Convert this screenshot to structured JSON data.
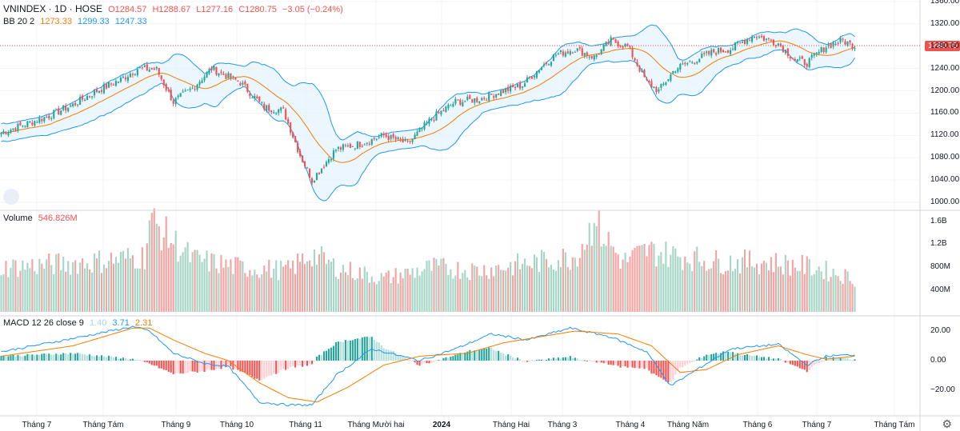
{
  "header": {
    "symbol": "VNINDEX · 1D · HOSE",
    "open": "O1284.57",
    "high": "H1288.67",
    "low": "L1277.16",
    "close": "C1280.75",
    "change": "−3.05 (−0.24%)"
  },
  "bb_legend": {
    "label": "BB 20 2",
    "basis": "1273.33",
    "upper": "1299.33",
    "lower": "1247.33"
  },
  "volume_legend": {
    "label": "Volume",
    "value": "546.826M"
  },
  "macd_legend": {
    "label": "MACD 12 26 close 9",
    "histogram": "1.40",
    "macd": "3.71",
    "signal": "2.31"
  },
  "last_price_tag": "1280.75",
  "colors": {
    "up": "#26a69a",
    "down": "#ef5350",
    "up_volume": "#a5d6c5",
    "down_volume": "#f4a3a3",
    "bb_band": "#2196f3",
    "bb_fill": "#e3f2fd",
    "basis": "#f57c00",
    "macd": "#2196f3",
    "signal": "#f57c00"
  },
  "chart_data": {
    "type": "line",
    "title": "VNINDEX 1D HOSE",
    "panes": [
      "price",
      "volume",
      "macd"
    ],
    "price_axis": {
      "ticks": [
        "1360.00",
        "1320.00",
        "1280.00",
        "1240.00",
        "1200.00",
        "1160.00",
        "1120.00",
        "1080.00",
        "1040.00",
        "1000.00"
      ],
      "range": [
        1000,
        1360
      ]
    },
    "volume_axis": {
      "ticks": [
        "1.6B",
        "1.2B",
        "800M",
        "400M"
      ],
      "range": [
        0,
        1700000000
      ]
    },
    "macd_axis": {
      "ticks": [
        "20.00",
        "0.00",
        "−20.00"
      ],
      "range": [
        -35,
        27
      ]
    },
    "x_labels": [
      "Tháng 7",
      "Tháng Tám",
      "Tháng 9",
      "Tháng 10",
      "Tháng 11",
      "Tháng Mười hai",
      "2024",
      "Tháng Hai",
      "Tháng 3",
      "Tháng 4",
      "Tháng Năm",
      "Tháng 6",
      "Tháng 7",
      "Tháng Tám"
    ],
    "close_anchors": [
      [
        0,
        1125
      ],
      [
        10,
        1140
      ],
      [
        20,
        1155
      ],
      [
        30,
        1175
      ],
      [
        40,
        1200
      ],
      [
        50,
        1220
      ],
      [
        57,
        1240
      ],
      [
        65,
        1238
      ],
      [
        72,
        1180
      ],
      [
        80,
        1205
      ],
      [
        88,
        1240
      ],
      [
        95,
        1225
      ],
      [
        100,
        1215
      ],
      [
        110,
        1170
      ],
      [
        118,
        1165
      ],
      [
        125,
        1085
      ],
      [
        130,
        1040
      ],
      [
        140,
        1095
      ],
      [
        150,
        1105
      ],
      [
        160,
        1120
      ],
      [
        170,
        1105
      ],
      [
        180,
        1150
      ],
      [
        190,
        1180
      ],
      [
        200,
        1185
      ],
      [
        210,
        1200
      ],
      [
        218,
        1210
      ],
      [
        225,
        1240
      ],
      [
        232,
        1265
      ],
      [
        240,
        1275
      ],
      [
        248,
        1260
      ],
      [
        255,
        1290
      ],
      [
        262,
        1280
      ],
      [
        270,
        1215
      ],
      [
        275,
        1200
      ],
      [
        282,
        1240
      ],
      [
        290,
        1255
      ],
      [
        298,
        1270
      ],
      [
        305,
        1275
      ],
      [
        315,
        1300
      ],
      [
        325,
        1285
      ],
      [
        332,
        1255
      ],
      [
        337,
        1250
      ],
      [
        345,
        1280
      ],
      [
        352,
        1290
      ],
      [
        357,
        1280
      ]
    ],
    "volume_anchors": [
      [
        0,
        0.8
      ],
      [
        20,
        0.85
      ],
      [
        38,
        0.9
      ],
      [
        60,
        1.0
      ],
      [
        62,
        1.65
      ],
      [
        80,
        0.95
      ],
      [
        100,
        0.8
      ],
      [
        120,
        0.75
      ],
      [
        130,
        1.05
      ],
      [
        140,
        0.8
      ],
      [
        160,
        0.6
      ],
      [
        180,
        0.8
      ],
      [
        200,
        0.75
      ],
      [
        225,
        0.9
      ],
      [
        240,
        1.0
      ],
      [
        248,
        1.6
      ],
      [
        260,
        0.9
      ],
      [
        270,
        1.1
      ],
      [
        300,
        0.9
      ],
      [
        320,
        0.9
      ],
      [
        340,
        0.8
      ],
      [
        357,
        0.6
      ]
    ],
    "macd_anchors": [
      [
        0,
        6
      ],
      [
        30,
        15
      ],
      [
        55,
        23
      ],
      [
        62,
        20
      ],
      [
        72,
        5
      ],
      [
        85,
        -2
      ],
      [
        95,
        -4
      ],
      [
        108,
        -28
      ],
      [
        120,
        -30
      ],
      [
        130,
        -30
      ],
      [
        140,
        -10
      ],
      [
        155,
        8
      ],
      [
        175,
        0
      ],
      [
        190,
        8
      ],
      [
        205,
        18
      ],
      [
        220,
        14
      ],
      [
        238,
        22
      ],
      [
        255,
        16
      ],
      [
        270,
        6
      ],
      [
        280,
        -17
      ],
      [
        292,
        -5
      ],
      [
        305,
        8
      ],
      [
        325,
        11
      ],
      [
        337,
        -3
      ],
      [
        345,
        3
      ],
      [
        357,
        4
      ]
    ],
    "signal_anchors": [
      [
        0,
        3
      ],
      [
        30,
        10
      ],
      [
        55,
        22
      ],
      [
        62,
        22
      ],
      [
        72,
        14
      ],
      [
        85,
        5
      ],
      [
        95,
        0
      ],
      [
        108,
        -15
      ],
      [
        120,
        -25
      ],
      [
        132,
        -28
      ],
      [
        145,
        -18
      ],
      [
        160,
        -3
      ],
      [
        175,
        3
      ],
      [
        195,
        5
      ],
      [
        210,
        12
      ],
      [
        225,
        16
      ],
      [
        240,
        20
      ],
      [
        258,
        18
      ],
      [
        272,
        10
      ],
      [
        284,
        -8
      ],
      [
        295,
        -6
      ],
      [
        308,
        4
      ],
      [
        325,
        10
      ],
      [
        337,
        4
      ],
      [
        345,
        1
      ],
      [
        357,
        3
      ]
    ],
    "series": [
      {
        "name": "BB 20 2"
      },
      {
        "name": "Volume"
      },
      {
        "name": "MACD 12 26 close 9"
      }
    ],
    "grid": true
  }
}
